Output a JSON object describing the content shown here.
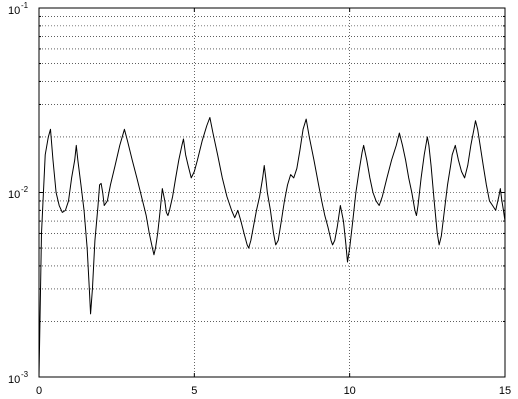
{
  "chart_data": {
    "type": "line",
    "title": "",
    "xlabel": "",
    "ylabel": "",
    "xlim": [
      0,
      15
    ],
    "ylim": [
      0.001,
      0.1
    ],
    "y_scale": "log",
    "grid": true,
    "grid_style": "dotted",
    "legend": "none",
    "x_ticks": [
      {
        "value": 0,
        "label": "0"
      },
      {
        "value": 5,
        "label": "5"
      },
      {
        "value": 10,
        "label": "10"
      },
      {
        "value": 15,
        "label": "15"
      }
    ],
    "y_ticks": [
      {
        "value": 0.001,
        "base": "10",
        "exponent": "-3"
      },
      {
        "value": 0.01,
        "base": "10",
        "exponent": "-2"
      },
      {
        "value": 0.1,
        "base": "10",
        "exponent": "-1"
      }
    ],
    "series": [
      {
        "color": "#000000",
        "points": [
          [
            0.0,
            0.001
          ],
          [
            0.08,
            0.006
          ],
          [
            0.2,
            0.016
          ],
          [
            0.3,
            0.02
          ],
          [
            0.37,
            0.022
          ],
          [
            0.45,
            0.015
          ],
          [
            0.55,
            0.01
          ],
          [
            0.65,
            0.0085
          ],
          [
            0.75,
            0.0078
          ],
          [
            0.85,
            0.008
          ],
          [
            0.95,
            0.009
          ],
          [
            1.05,
            0.012
          ],
          [
            1.15,
            0.015
          ],
          [
            1.2,
            0.018
          ],
          [
            1.25,
            0.015
          ],
          [
            1.35,
            0.011
          ],
          [
            1.45,
            0.008
          ],
          [
            1.55,
            0.005
          ],
          [
            1.62,
            0.003
          ],
          [
            1.66,
            0.0022
          ],
          [
            1.72,
            0.003
          ],
          [
            1.8,
            0.0055
          ],
          [
            1.9,
            0.0085
          ],
          [
            1.95,
            0.011
          ],
          [
            2.0,
            0.0112
          ],
          [
            2.05,
            0.01
          ],
          [
            2.1,
            0.0085
          ],
          [
            2.2,
            0.009
          ],
          [
            2.3,
            0.011
          ],
          [
            2.45,
            0.014
          ],
          [
            2.6,
            0.018
          ],
          [
            2.75,
            0.022
          ],
          [
            2.85,
            0.019
          ],
          [
            3.0,
            0.015
          ],
          [
            3.15,
            0.012
          ],
          [
            3.3,
            0.0095
          ],
          [
            3.45,
            0.0075
          ],
          [
            3.55,
            0.006
          ],
          [
            3.65,
            0.005
          ],
          [
            3.7,
            0.0046
          ],
          [
            3.75,
            0.005
          ],
          [
            3.82,
            0.006
          ],
          [
            3.9,
            0.008
          ],
          [
            3.97,
            0.0105
          ],
          [
            4.05,
            0.009
          ],
          [
            4.1,
            0.0078
          ],
          [
            4.15,
            0.0075
          ],
          [
            4.2,
            0.008
          ],
          [
            4.3,
            0.0095
          ],
          [
            4.4,
            0.012
          ],
          [
            4.5,
            0.015
          ],
          [
            4.6,
            0.018
          ],
          [
            4.65,
            0.0195
          ],
          [
            4.72,
            0.016
          ],
          [
            4.8,
            0.014
          ],
          [
            4.9,
            0.012
          ],
          [
            5.0,
            0.013
          ],
          [
            5.1,
            0.015
          ],
          [
            5.25,
            0.019
          ],
          [
            5.4,
            0.023
          ],
          [
            5.5,
            0.0255
          ],
          [
            5.6,
            0.021
          ],
          [
            5.75,
            0.016
          ],
          [
            5.9,
            0.012
          ],
          [
            6.05,
            0.0095
          ],
          [
            6.2,
            0.008
          ],
          [
            6.3,
            0.0073
          ],
          [
            6.4,
            0.008
          ],
          [
            6.5,
            0.007
          ],
          [
            6.6,
            0.006
          ],
          [
            6.7,
            0.0052
          ],
          [
            6.75,
            0.005
          ],
          [
            6.82,
            0.0055
          ],
          [
            6.9,
            0.0065
          ],
          [
            7.0,
            0.008
          ],
          [
            7.1,
            0.0095
          ],
          [
            7.2,
            0.012
          ],
          [
            7.25,
            0.014
          ],
          [
            7.3,
            0.012
          ],
          [
            7.35,
            0.01
          ],
          [
            7.45,
            0.008
          ],
          [
            7.55,
            0.006
          ],
          [
            7.62,
            0.0052
          ],
          [
            7.7,
            0.0055
          ],
          [
            7.8,
            0.007
          ],
          [
            7.9,
            0.009
          ],
          [
            8.0,
            0.011
          ],
          [
            8.1,
            0.0125
          ],
          [
            8.2,
            0.012
          ],
          [
            8.3,
            0.0135
          ],
          [
            8.4,
            0.017
          ],
          [
            8.5,
            0.022
          ],
          [
            8.6,
            0.025
          ],
          [
            8.7,
            0.02
          ],
          [
            8.85,
            0.015
          ],
          [
            9.0,
            0.011
          ],
          [
            9.1,
            0.009
          ],
          [
            9.2,
            0.0075
          ],
          [
            9.3,
            0.0065
          ],
          [
            9.4,
            0.0055
          ],
          [
            9.45,
            0.0052
          ],
          [
            9.52,
            0.0055
          ],
          [
            9.6,
            0.0065
          ],
          [
            9.7,
            0.0085
          ],
          [
            9.8,
            0.007
          ],
          [
            9.88,
            0.0052
          ],
          [
            9.93,
            0.0042
          ],
          [
            10.0,
            0.005
          ],
          [
            10.1,
            0.007
          ],
          [
            10.2,
            0.01
          ],
          [
            10.3,
            0.013
          ],
          [
            10.4,
            0.0165
          ],
          [
            10.45,
            0.018
          ],
          [
            10.55,
            0.015
          ],
          [
            10.65,
            0.012
          ],
          [
            10.75,
            0.01
          ],
          [
            10.85,
            0.009
          ],
          [
            10.95,
            0.0085
          ],
          [
            11.05,
            0.0095
          ],
          [
            11.2,
            0.012
          ],
          [
            11.35,
            0.015
          ],
          [
            11.5,
            0.018
          ],
          [
            11.6,
            0.021
          ],
          [
            11.7,
            0.018
          ],
          [
            11.8,
            0.015
          ],
          [
            11.9,
            0.012
          ],
          [
            12.0,
            0.01
          ],
          [
            12.1,
            0.008
          ],
          [
            12.15,
            0.0075
          ],
          [
            12.2,
            0.0085
          ],
          [
            12.3,
            0.012
          ],
          [
            12.4,
            0.016
          ],
          [
            12.5,
            0.02
          ],
          [
            12.55,
            0.018
          ],
          [
            12.62,
            0.014
          ],
          [
            12.72,
            0.009
          ],
          [
            12.82,
            0.006
          ],
          [
            12.88,
            0.0052
          ],
          [
            12.95,
            0.0058
          ],
          [
            13.05,
            0.008
          ],
          [
            13.15,
            0.011
          ],
          [
            13.25,
            0.014
          ],
          [
            13.3,
            0.016
          ],
          [
            13.4,
            0.018
          ],
          [
            13.5,
            0.015
          ],
          [
            13.6,
            0.013
          ],
          [
            13.7,
            0.012
          ],
          [
            13.8,
            0.014
          ],
          [
            13.9,
            0.018
          ],
          [
            14.0,
            0.022
          ],
          [
            14.05,
            0.0245
          ],
          [
            14.12,
            0.022
          ],
          [
            14.2,
            0.018
          ],
          [
            14.3,
            0.014
          ],
          [
            14.4,
            0.011
          ],
          [
            14.5,
            0.009
          ],
          [
            14.6,
            0.0085
          ],
          [
            14.7,
            0.008
          ],
          [
            14.8,
            0.0095
          ],
          [
            14.85,
            0.0105
          ],
          [
            14.9,
            0.009
          ],
          [
            14.95,
            0.008
          ],
          [
            15.0,
            0.007
          ]
        ]
      }
    ]
  }
}
